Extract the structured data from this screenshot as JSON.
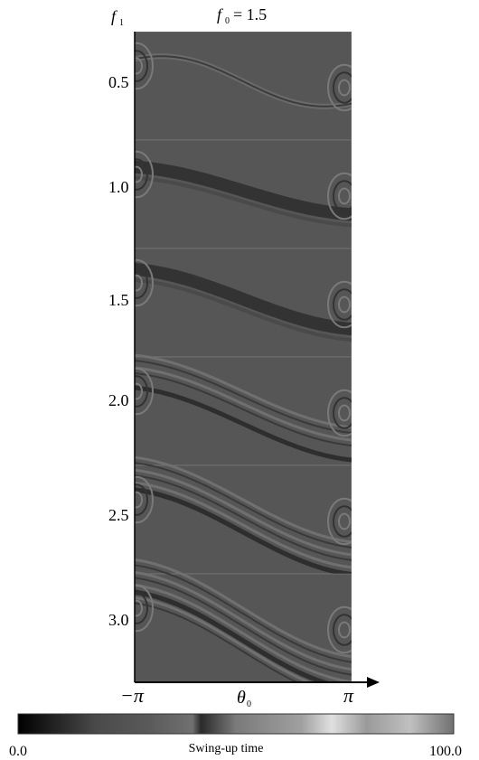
{
  "header": {
    "f1_var": "f",
    "f1_sub": "1",
    "title_var": "f",
    "title_sub": "0",
    "title_eq": "= 1.5"
  },
  "panels": [
    {
      "label": "0.5"
    },
    {
      "label": "1.0"
    },
    {
      "label": "1.5"
    },
    {
      "label": "2.0"
    },
    {
      "label": "2.5"
    },
    {
      "label": "3.0"
    }
  ],
  "x_axis": {
    "left": "−π",
    "var": "θ",
    "var_sub": "0",
    "right": "π"
  },
  "colorbar": {
    "min": "0.0",
    "label": "Swing-up time",
    "max": "100.0"
  }
}
